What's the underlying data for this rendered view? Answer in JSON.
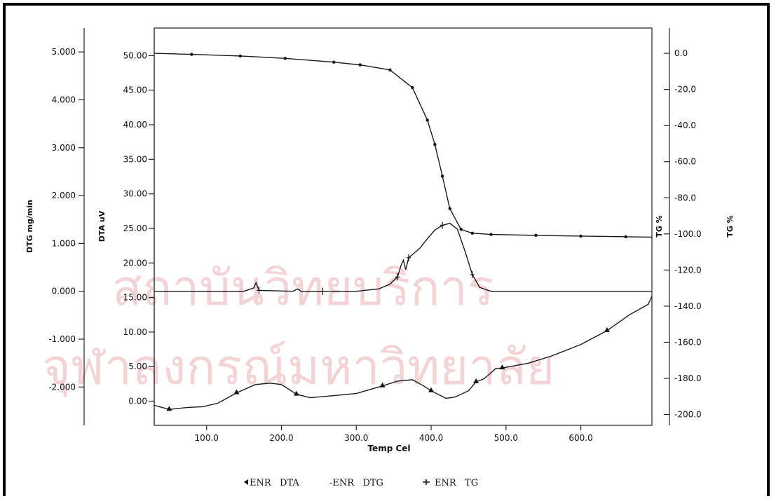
{
  "colors": {
    "line": "#1a1a1a",
    "axis": "#222222",
    "watermark": "#f2d4d6"
  },
  "watermark": {
    "line1": "สถาบันวิทยบริการ",
    "line2": "จุฬาลงกรณ์มหาวิทยาลัย"
  },
  "chart_data": {
    "type": "line",
    "xlabel": "Temp Cel",
    "xlim": [
      30,
      695
    ],
    "xticks": [
      "100.0",
      "200.0",
      "300.0",
      "400.0",
      "500.0",
      "600.0"
    ],
    "axes": {
      "dtg": {
        "label": "DTG mg/min",
        "ylim": [
          -2.8,
          5.5
        ],
        "ticks": [
          "5.000",
          "4.000",
          "3.000",
          "2.000",
          "1.000",
          "0.000",
          "-1.000",
          "-2.000"
        ]
      },
      "dta": {
        "label": "DTA uV",
        "ylim": [
          -3.5,
          54.0
        ],
        "ticks": [
          "50.00",
          "45.00",
          "40.00",
          "35.00",
          "30.00",
          "25.00",
          "20.00",
          "15.00",
          "10.00",
          "5.00",
          "0.00"
        ]
      },
      "tg": {
        "label": "TG %",
        "ylim": [
          -206,
          14
        ],
        "ticks": [
          "0.0",
          "-20.0",
          "-40.0",
          "-60.0",
          "-80.0",
          "-100.0",
          "-120.0",
          "-140.0",
          "-160.0",
          "-180.0",
          "-200.0"
        ]
      },
      "tg2": {
        "label": "TG %"
      }
    },
    "legend": [
      "ENR   DTA",
      "-ENR   DTG",
      "ENR   TG"
    ],
    "series": [
      {
        "name": "ENR TG",
        "axis": "tg",
        "marker": "dot",
        "x": [
          30,
          80,
          145,
          205,
          270,
          305,
          345,
          375,
          395,
          405,
          415,
          425,
          440,
          455,
          480,
          540,
          600,
          660,
          695
        ],
        "y": [
          0.0,
          -0.6,
          -1.5,
          -2.8,
          -4.9,
          -6.4,
          -9.2,
          -19.0,
          -37.0,
          -50.5,
          -68.0,
          -86.0,
          -97.5,
          -99.6,
          -100.3,
          -100.8,
          -101.2,
          -101.6,
          -101.8
        ]
      },
      {
        "name": "ENR DTG",
        "axis": "dtg",
        "marker": "plus",
        "x": [
          30,
          150,
          163,
          166,
          170,
          215,
          222,
          226,
          255,
          300,
          330,
          345,
          355,
          360,
          363,
          366,
          370,
          385,
          395,
          405,
          415,
          425,
          435,
          445,
          455,
          465,
          480,
          695
        ],
        "y": [
          0.0,
          0.0,
          0.07,
          0.18,
          0.02,
          0.0,
          0.05,
          0.0,
          0.0,
          0.0,
          0.05,
          0.15,
          0.3,
          0.55,
          0.65,
          0.45,
          0.7,
          0.9,
          1.1,
          1.28,
          1.38,
          1.42,
          1.3,
          0.85,
          0.35,
          0.08,
          0.0,
          0.0
        ]
      },
      {
        "name": "ENR DTA",
        "axis": "dta",
        "marker": "triangle",
        "x": [
          30,
          50,
          75,
          95,
          115,
          140,
          165,
          185,
          200,
          220,
          238,
          260,
          300,
          335,
          355,
          375,
          390,
          400,
          420,
          432,
          450,
          460,
          470,
          478,
          486,
          495,
          530,
          560,
          600,
          635,
          665,
          690,
          695
        ],
        "y": [
          -0.6,
          -1.2,
          -0.9,
          -0.8,
          -0.3,
          1.2,
          2.4,
          2.6,
          2.4,
          1.0,
          0.5,
          0.7,
          1.1,
          2.2,
          2.9,
          3.1,
          2.2,
          1.5,
          0.4,
          0.6,
          1.5,
          2.8,
          3.2,
          3.9,
          4.7,
          4.8,
          5.5,
          6.5,
          8.2,
          10.2,
          12.5,
          14.0,
          15.2
        ]
      }
    ]
  }
}
